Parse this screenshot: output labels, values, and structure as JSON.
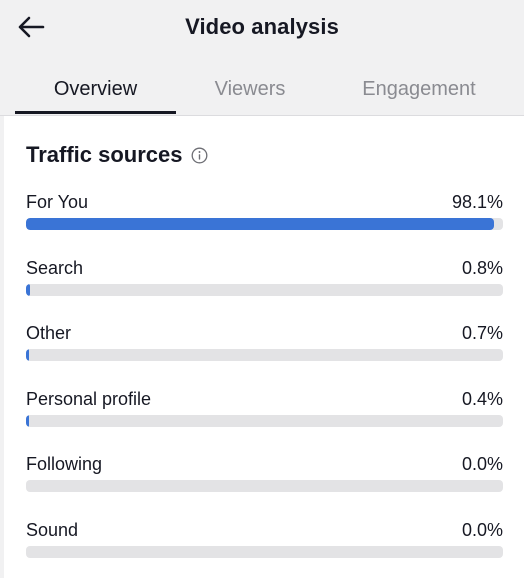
{
  "header": {
    "back_icon": "arrow-left-icon",
    "title": "Video analysis"
  },
  "tabs": [
    {
      "label": "Overview",
      "active": true
    },
    {
      "label": "Viewers",
      "active": false
    },
    {
      "label": "Engagement",
      "active": false
    }
  ],
  "traffic": {
    "title": "Traffic sources",
    "info_icon": "info-icon",
    "accent_color": "#3a74d6",
    "sources": [
      {
        "label": "For You",
        "value": "98.1%",
        "fraction": 0.981
      },
      {
        "label": "Search",
        "value": "0.8%",
        "fraction": 0.008
      },
      {
        "label": "Other",
        "value": "0.7%",
        "fraction": 0.007
      },
      {
        "label": "Personal profile",
        "value": "0.4%",
        "fraction": 0.004
      },
      {
        "label": "Following",
        "value": "0.0%",
        "fraction": 0.0
      },
      {
        "label": "Sound",
        "value": "0.0%",
        "fraction": 0.0
      }
    ]
  }
}
